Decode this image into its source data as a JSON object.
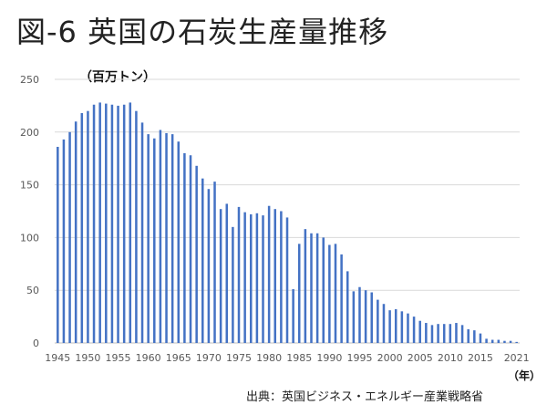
{
  "title": "図-6 英国の石炭生産量推移",
  "source": "出典：英国ビジネス・エネルギー産業戦略省",
  "colors": {
    "bar": "#4472C4",
    "grid": "#d9d9d9",
    "axis_text": "#595959"
  },
  "chart_data": {
    "type": "bar",
    "title": "図-6 英国の石炭生産量推移",
    "ylabel": "（百万トン）",
    "xlabel": "（年）",
    "ylim": [
      0,
      250
    ],
    "yticks": [
      0,
      50,
      100,
      150,
      200,
      250
    ],
    "xtick_labels": [
      "1945",
      "1950",
      "1955",
      "1960",
      "1965",
      "1970",
      "1975",
      "1980",
      "1985",
      "1990",
      "1995",
      "2000",
      "2005",
      "2010",
      "2015",
      "2021"
    ],
    "grid": "horizontal",
    "categories": [
      1945,
      1946,
      1947,
      1948,
      1949,
      1950,
      1951,
      1952,
      1953,
      1954,
      1955,
      1956,
      1957,
      1958,
      1959,
      1960,
      1961,
      1962,
      1963,
      1964,
      1965,
      1966,
      1967,
      1968,
      1969,
      1970,
      1971,
      1972,
      1973,
      1974,
      1975,
      1976,
      1977,
      1978,
      1979,
      1980,
      1981,
      1982,
      1983,
      1984,
      1985,
      1986,
      1987,
      1988,
      1989,
      1990,
      1991,
      1992,
      1993,
      1994,
      1995,
      1996,
      1997,
      1998,
      1999,
      2000,
      2001,
      2002,
      2003,
      2004,
      2005,
      2006,
      2007,
      2008,
      2009,
      2010,
      2011,
      2012,
      2013,
      2014,
      2015,
      2016,
      2017,
      2018,
      2019,
      2020,
      2021
    ],
    "values": [
      186,
      193,
      200,
      210,
      218,
      220,
      226,
      228,
      227,
      226,
      225,
      226,
      228,
      220,
      209,
      198,
      194,
      202,
      199,
      198,
      191,
      180,
      178,
      168,
      156,
      146,
      153,
      127,
      132,
      110,
      129,
      124,
      122,
      123,
      121,
      130,
      127,
      125,
      119,
      51,
      94,
      108,
      104,
      104,
      100,
      93,
      94,
      84,
      68,
      49,
      53,
      50,
      48,
      41,
      37,
      31,
      32,
      30,
      28,
      25,
      21,
      19,
      17,
      18,
      18,
      18,
      19,
      17,
      13,
      12,
      9,
      4,
      3,
      3,
      2,
      2,
      1
    ]
  }
}
